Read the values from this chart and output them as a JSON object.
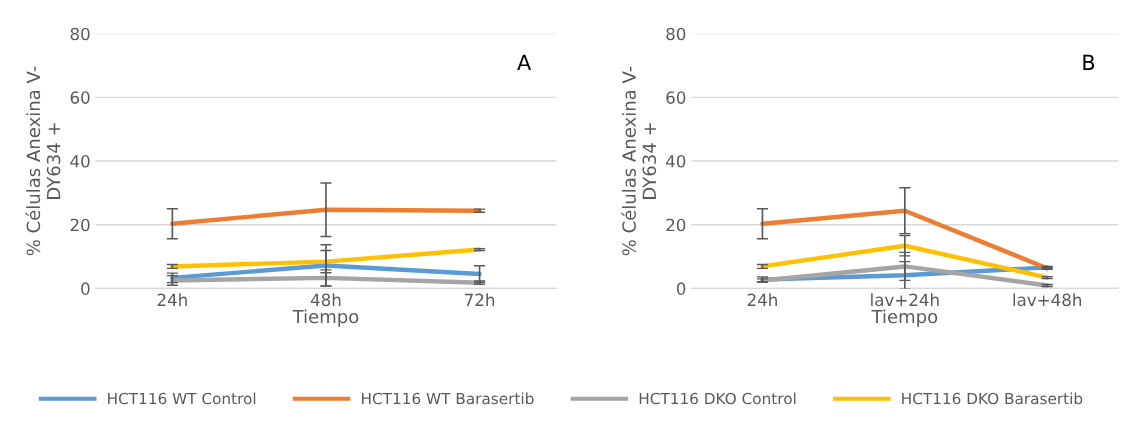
{
  "chart_data": [
    {
      "type": "line",
      "ylabel": "% Células Anexina V-\nDY634 +",
      "xlabel": "Tiempo",
      "annotations": [
        "A"
      ],
      "categories": [
        "24h",
        "48h",
        "72h"
      ],
      "ylim": [
        0,
        80
      ],
      "yticks": [
        0,
        20,
        40,
        60,
        80
      ],
      "grid": "y",
      "legend": "bottom",
      "marker": "none",
      "line_style": "solid",
      "series": [
        {
          "name": "HCT116 WT Control",
          "color": "#5b9bd5",
          "values": [
            3.3,
            7.2,
            4.5
          ],
          "errors": [
            1.5,
            6.5,
            2.6
          ]
        },
        {
          "name": "HCT116 WT Barasertib",
          "color": "#ed7d31",
          "values": [
            20.3,
            24.7,
            24.4
          ],
          "errors": [
            4.7,
            8.4,
            0.5
          ]
        },
        {
          "name": "HCT116 DKO Control",
          "color": "#a5a5a5",
          "values": [
            2.5,
            3.3,
            1.8
          ],
          "errors": [
            1.5,
            2.5,
            0.5
          ]
        },
        {
          "name": "HCT116 DKO Barasertib",
          "color": "#ffc000",
          "values": [
            6.9,
            8.4,
            12.2
          ],
          "errors": [
            0.6,
            3.5,
            0.3
          ]
        }
      ]
    },
    {
      "type": "line",
      "ylabel": "% Células Anexina V-\nDY634 +",
      "xlabel": "Tiempo",
      "annotations": [
        "B"
      ],
      "categories": [
        "24h",
        "lav+24h",
        "lav+48h"
      ],
      "ylim": [
        0,
        80
      ],
      "yticks": [
        0,
        20,
        40,
        60,
        80
      ],
      "grid": "y",
      "legend": "bottom",
      "marker": "none",
      "line_style": "solid",
      "series": [
        {
          "name": "HCT116 WT Control",
          "color": "#5b9bd5",
          "values": [
            2.8,
            4.1,
            6.6
          ],
          "errors": [
            0.8,
            4.3,
            0.3
          ]
        },
        {
          "name": "HCT116 WT Barasertib",
          "color": "#ed7d31",
          "values": [
            20.3,
            24.4,
            6.3
          ],
          "errors": [
            4.7,
            7.2,
            0.3
          ]
        },
        {
          "name": "HCT116 DKO Control",
          "color": "#a5a5a5",
          "values": [
            2.5,
            6.9,
            0.9
          ],
          "errors": [
            0.5,
            4.4,
            0.3
          ]
        },
        {
          "name": "HCT116 DKO Barasertib",
          "color": "#ffc000",
          "values": [
            6.9,
            13.4,
            3.4
          ],
          "errors": [
            0.6,
            3.2,
            0.3
          ]
        }
      ]
    }
  ]
}
